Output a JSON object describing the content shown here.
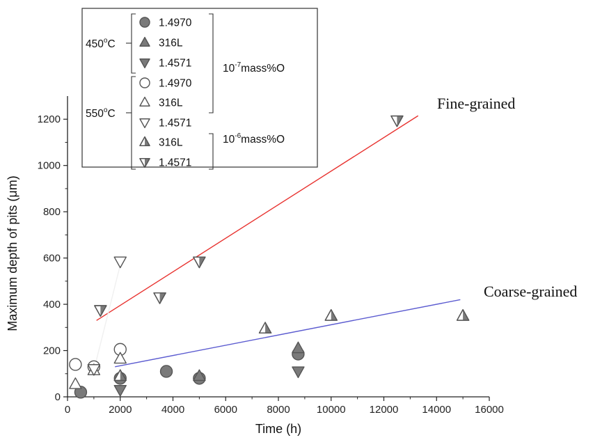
{
  "chart_data": {
    "type": "scatter",
    "xlabel": "Time (h)",
    "ylabel": "Maximum depth of pits (μm)",
    "xlim": [
      0,
      16000
    ],
    "ylim": [
      0,
      1300
    ],
    "x_ticks": [
      0,
      2000,
      4000,
      6000,
      8000,
      10000,
      12000,
      14000,
      16000
    ],
    "y_ticks": [
      0,
      200,
      400,
      600,
      800,
      1000,
      1200
    ],
    "grid": false,
    "legend_position": "top-left",
    "legend": {
      "groups": [
        {
          "temp_base": "450",
          "temp_sup": "o",
          "temp_suffix": "C"
        },
        {
          "temp_base": "550",
          "temp_sup": "o",
          "temp_suffix": "C"
        }
      ],
      "oxygen": [
        {
          "base": "10",
          "exp": "-7",
          "unit": "mass%O"
        },
        {
          "base": "10",
          "exp": "-6",
          "unit": "mass%O"
        }
      ],
      "entries": [
        {
          "label": "1.4970",
          "marker": "circle",
          "fill": "solid",
          "row": 0
        },
        {
          "label": "316L",
          "marker": "triangle-up",
          "fill": "solid",
          "row": 1
        },
        {
          "label": "1.4571",
          "marker": "triangle-down",
          "fill": "solid",
          "row": 2
        },
        {
          "label": "1.4970",
          "marker": "circle",
          "fill": "open",
          "row": 3
        },
        {
          "label": "316L",
          "marker": "triangle-up",
          "fill": "open",
          "row": 4
        },
        {
          "label": "1.4571",
          "marker": "triangle-down",
          "fill": "open",
          "row": 5
        },
        {
          "label": "316L",
          "marker": "triangle-up",
          "fill": "half",
          "row": 6
        },
        {
          "label": "1.4571",
          "marker": "triangle-down",
          "fill": "half",
          "row": 7
        }
      ]
    },
    "series": [
      {
        "marker": "circle",
        "fill": "solid",
        "points": [
          [
            500,
            20
          ],
          [
            2000,
            80
          ],
          [
            3750,
            110
          ],
          [
            5000,
            80
          ],
          [
            8750,
            185
          ]
        ]
      },
      {
        "marker": "triangle-up",
        "fill": "solid",
        "points": [
          [
            5000,
            90
          ],
          [
            8750,
            210
          ]
        ]
      },
      {
        "marker": "triangle-down",
        "fill": "solid",
        "points": [
          [
            2000,
            30
          ],
          [
            8750,
            110
          ]
        ]
      },
      {
        "marker": "circle",
        "fill": "open",
        "points": [
          [
            300,
            140
          ],
          [
            1000,
            130
          ],
          [
            2000,
            205
          ]
        ]
      },
      {
        "marker": "triangle-up",
        "fill": "open",
        "points": [
          [
            300,
            55
          ],
          [
            1000,
            115
          ],
          [
            2000,
            165
          ]
        ]
      },
      {
        "marker": "triangle-down",
        "fill": "open",
        "points": [
          [
            1000,
            120
          ],
          [
            2000,
            585
          ]
        ]
      },
      {
        "marker": "triangle-up",
        "fill": "half",
        "points": [
          [
            2000,
            90
          ],
          [
            7500,
            295
          ],
          [
            10000,
            350
          ],
          [
            15000,
            350
          ]
        ]
      },
      {
        "marker": "triangle-down",
        "fill": "half",
        "points": [
          [
            1250,
            375
          ],
          [
            3500,
            430
          ],
          [
            5000,
            585
          ],
          [
            12500,
            1195
          ]
        ]
      }
    ],
    "trend_lines": [
      {
        "label": "Fine-grained",
        "color": "#e8322f",
        "points": [
          [
            1100,
            330
          ],
          [
            13300,
            1215
          ]
        ]
      },
      {
        "label": "Coarse-grained",
        "color": "#5b5bd0",
        "points": [
          [
            1800,
            130
          ],
          [
            14900,
            420
          ]
        ]
      },
      {
        "label": "",
        "color": "#f0f0f0",
        "points": [
          [
            1000,
            115
          ],
          [
            2000,
            570
          ]
        ]
      }
    ]
  }
}
